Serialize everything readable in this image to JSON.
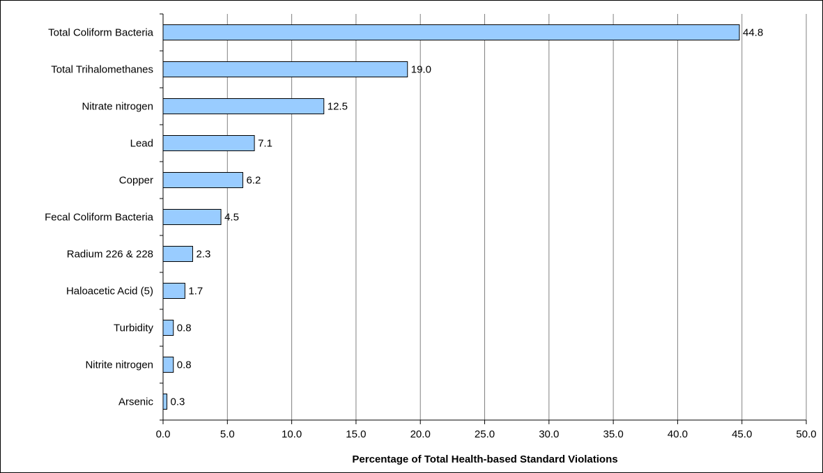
{
  "chart_data": {
    "type": "bar",
    "orientation": "horizontal",
    "categories": [
      "Total Coliform Bacteria",
      "Total Trihalomethanes",
      "Nitrate nitrogen",
      "Lead",
      "Copper",
      "Fecal Coliform Bacteria",
      "Radium 226 & 228",
      "Haloacetic Acid (5)",
      "Turbidity",
      "Nitrite nitrogen",
      "Arsenic"
    ],
    "values": [
      44.8,
      19.0,
      12.5,
      7.1,
      6.2,
      4.5,
      2.3,
      1.7,
      0.8,
      0.8,
      0.3
    ],
    "data_labels": [
      "44.8",
      "19.0",
      "12.5",
      "7.1",
      "6.2",
      "4.5",
      "2.3",
      "1.7",
      "0.8",
      "0.8",
      "0.3"
    ],
    "xlabel": "Percentage of Total Health-based Standard Violations",
    "xlim": [
      0,
      50
    ],
    "x_ticks": [
      "0.0",
      "5.0",
      "10.0",
      "15.0",
      "20.0",
      "25.0",
      "30.0",
      "35.0",
      "40.0",
      "45.0",
      "50.0"
    ],
    "grid": "vertical",
    "legend": "none",
    "colors": {
      "bar_fill": "#99ccff",
      "bar_stroke": "#000000",
      "grid": "#808080"
    }
  }
}
